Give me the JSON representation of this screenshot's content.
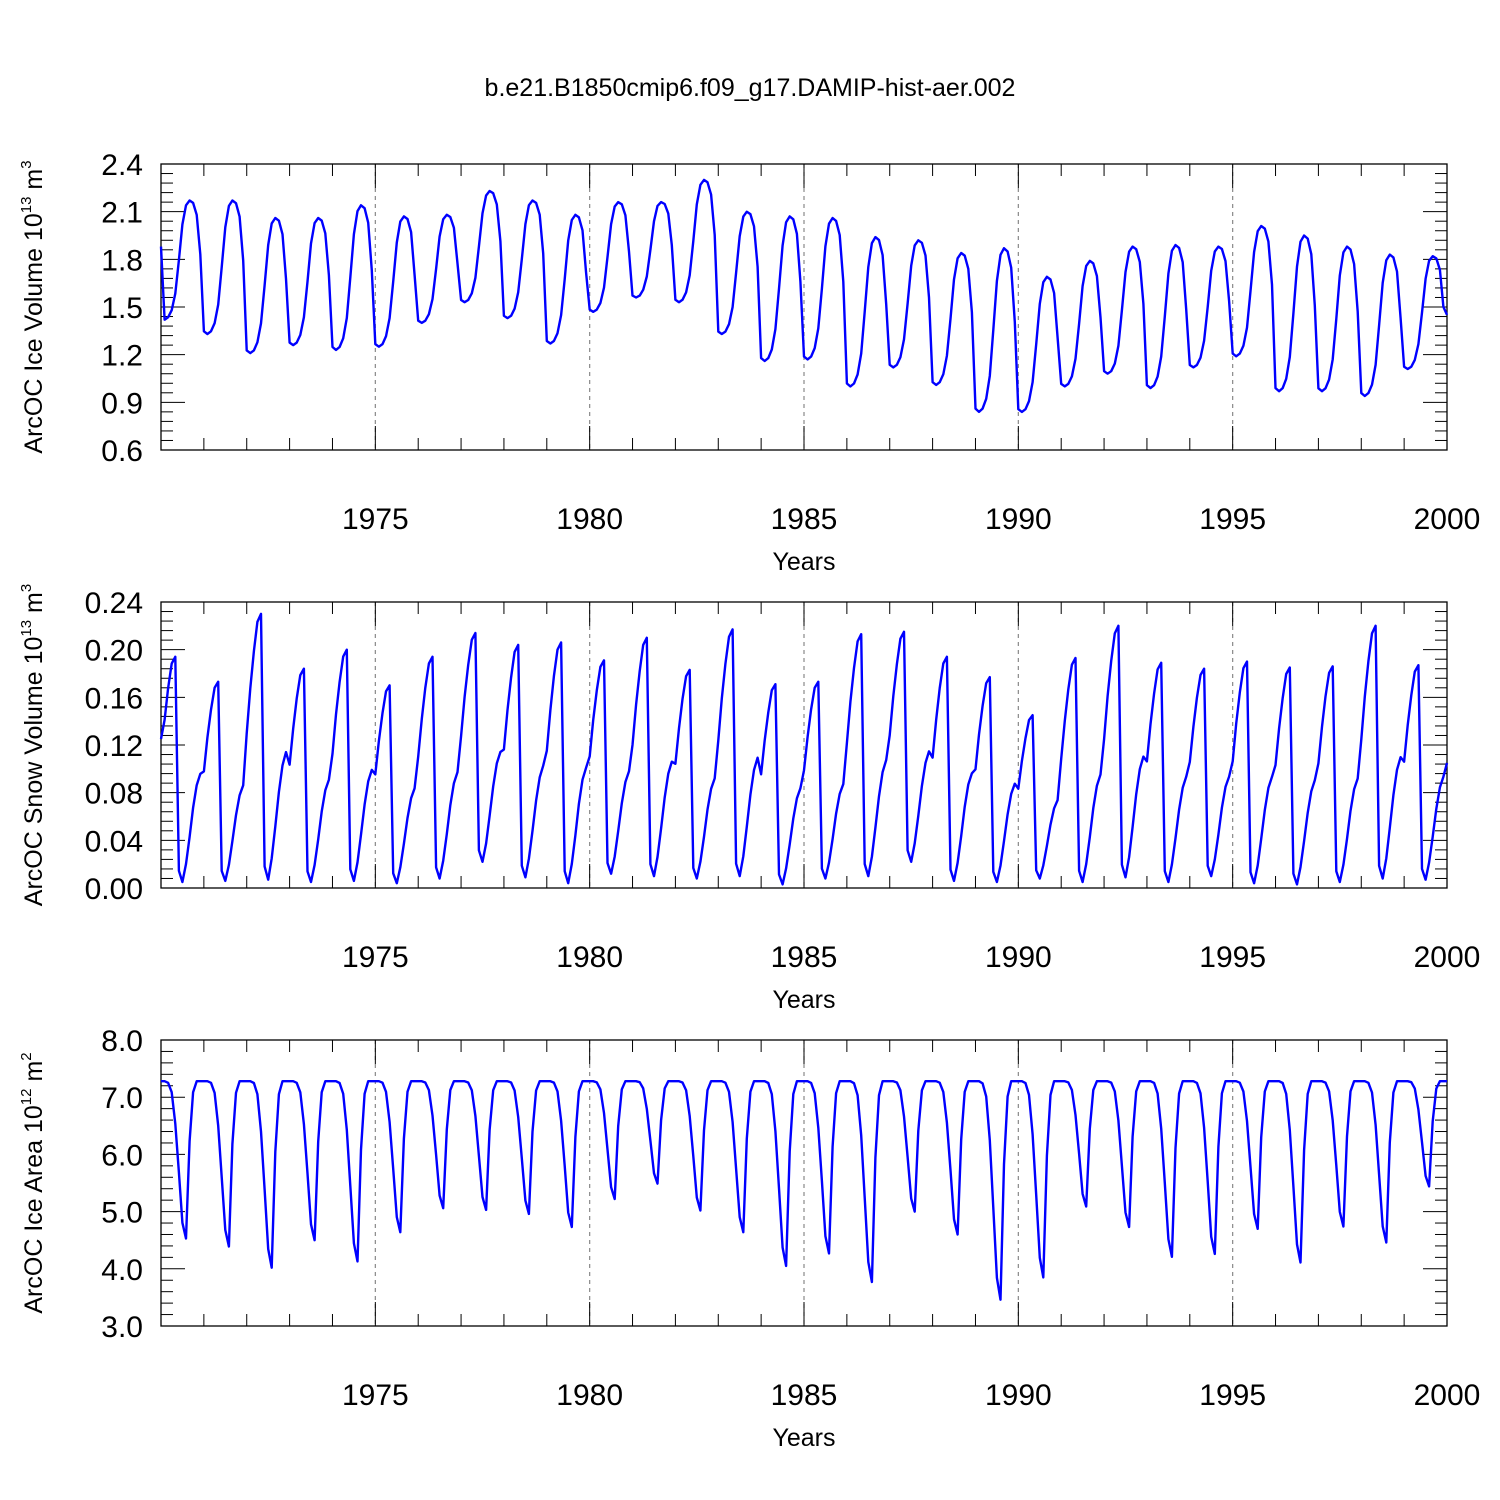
{
  "title": "b.e21.B1850cmip6.f09_g17.DAMIP-hist-aer.002",
  "colors": {
    "series": "#0000ff",
    "axes": "#000000",
    "grid": "#888888"
  },
  "chart_data": [
    {
      "type": "line",
      "id": "ice-volume",
      "ylabel_main": "ArcOC Ice Volume 10",
      "ylabel_exp": "13",
      "ylabel_unit": " m",
      "ylabel_unit_exp": "3",
      "xlabel": "Years",
      "xlim": [
        1970,
        2000
      ],
      "ylim": [
        0.6,
        2.4
      ],
      "yticks": [
        0.6,
        0.9,
        1.2,
        1.5,
        1.8,
        2.1,
        2.4
      ],
      "ytick_labels": [
        "0.6",
        "0.9",
        "1.2",
        "1.5",
        "1.8",
        "2.1",
        "2.4"
      ],
      "xticks": [
        1975,
        1980,
        1985,
        1990,
        1995,
        2000
      ],
      "xtick_labels": [
        "1975",
        "1980",
        "1985",
        "1990",
        "1995",
        "2000"
      ],
      "x_start": 1970.0,
      "x_step": 0.08333333,
      "shape": [
        0.02,
        0.0,
        0.02,
        0.08,
        0.22,
        0.5,
        0.8,
        0.96,
        1.0,
        0.98,
        0.88,
        0.55
      ],
      "annual_max": [
        2.17,
        2.17,
        2.06,
        2.06,
        2.14,
        2.07,
        2.08,
        2.23,
        2.17,
        2.08,
        2.16,
        2.16,
        2.3,
        2.1,
        2.07,
        2.06,
        1.94,
        1.92,
        1.84,
        1.87,
        1.69,
        1.79,
        1.88,
        1.89,
        1.88,
        2.01,
        1.95,
        1.88,
        1.83,
        1.82
      ],
      "annual_min": [
        1.42,
        1.33,
        1.21,
        1.26,
        1.23,
        1.25,
        1.4,
        1.53,
        1.43,
        1.27,
        1.47,
        1.56,
        1.53,
        1.33,
        1.16,
        1.17,
        1.0,
        1.12,
        1.01,
        0.84,
        0.84,
        1.0,
        1.08,
        0.99,
        1.12,
        1.19,
        0.97,
        0.97,
        0.94,
        1.11
      ],
      "start_value": 1.88,
      "end_value": 1.45
    },
    {
      "type": "line",
      "id": "snow-volume",
      "ylabel_main": "ArcOC Snow Volume 10",
      "ylabel_exp": "13",
      "ylabel_unit": " m",
      "ylabel_unit_exp": "3",
      "xlabel": "Years",
      "xlim": [
        1970,
        2000
      ],
      "ylim": [
        0.0,
        0.24
      ],
      "yticks": [
        0.0,
        0.04,
        0.08,
        0.12,
        0.16,
        0.2,
        0.24
      ],
      "ytick_labels": [
        "0.00",
        "0.04",
        "0.08",
        "0.12",
        "0.16",
        "0.20",
        "0.24"
      ],
      "xticks": [
        1975,
        1980,
        1985,
        1990,
        1995,
        2000
      ],
      "xtick_labels": [
        "1975",
        "1980",
        "1985",
        "1990",
        "1995",
        "2000"
      ],
      "x_start": 1970.0,
      "x_step": 0.08333333,
      "shape": [
        0.55,
        0.72,
        0.86,
        0.97,
        1.0,
        0.05,
        0.0,
        0.08,
        0.2,
        0.33,
        0.43,
        0.48
      ],
      "annual_max": [
        0.194,
        0.173,
        0.23,
        0.184,
        0.2,
        0.17,
        0.194,
        0.214,
        0.204,
        0.206,
        0.191,
        0.21,
        0.183,
        0.217,
        0.171,
        0.173,
        0.213,
        0.215,
        0.194,
        0.177,
        0.145,
        0.193,
        0.22,
        0.189,
        0.184,
        0.19,
        0.185,
        0.186,
        0.22,
        0.187
      ],
      "annual_min": [
        0.005,
        0.006,
        0.007,
        0.005,
        0.006,
        0.004,
        0.008,
        0.022,
        0.009,
        0.004,
        0.012,
        0.01,
        0.008,
        0.01,
        0.003,
        0.008,
        0.01,
        0.022,
        0.006,
        0.005,
        0.008,
        0.005,
        0.009,
        0.005,
        0.01,
        0.004,
        0.003,
        0.005,
        0.008,
        0.007
      ],
      "start_value": 0.125,
      "end_value": 0.105
    },
    {
      "type": "line",
      "id": "ice-area",
      "ylabel_main": "ArcOC Ice Area 10",
      "ylabel_exp": "12",
      "ylabel_unit": " m",
      "ylabel_unit_exp": "2",
      "xlabel": "Years",
      "xlim": [
        1970,
        2000
      ],
      "ylim": [
        3.0,
        8.0
      ],
      "yticks": [
        3.0,
        4.0,
        5.0,
        6.0,
        7.0,
        8.0
      ],
      "ytick_labels": [
        "3.0",
        "4.0",
        "5.0",
        "6.0",
        "7.0",
        "8.0"
      ],
      "xticks": [
        1975,
        1980,
        1985,
        1990,
        1995,
        2000
      ],
      "xtick_labels": [
        "1975",
        "1980",
        "1985",
        "1990",
        "1995",
        "2000"
      ],
      "x_start": 1970.0,
      "x_step": 0.08333333,
      "shape": [
        1.0,
        1.0,
        0.99,
        0.93,
        0.73,
        0.42,
        0.1,
        0.0,
        0.62,
        0.93,
        1.0,
        1.0
      ],
      "annual_max": [
        7.28,
        7.28,
        7.28,
        7.28,
        7.28,
        7.28,
        7.28,
        7.28,
        7.28,
        7.28,
        7.28,
        7.28,
        7.28,
        7.28,
        7.28,
        7.28,
        7.28,
        7.28,
        7.28,
        7.28,
        7.28,
        7.28,
        7.28,
        7.28,
        7.28,
        7.28,
        7.28,
        7.28,
        7.28,
        7.28
      ],
      "annual_min": [
        4.53,
        4.39,
        4.02,
        4.5,
        4.13,
        4.64,
        5.06,
        5.03,
        4.96,
        4.73,
        5.22,
        5.49,
        5.02,
        4.64,
        4.05,
        4.27,
        3.77,
        5.0,
        4.6,
        3.46,
        3.85,
        5.09,
        4.73,
        4.21,
        4.26,
        4.7,
        4.11,
        4.74,
        4.46,
        5.44
      ],
      "start_value": 7.28,
      "end_value": 7.28
    }
  ]
}
